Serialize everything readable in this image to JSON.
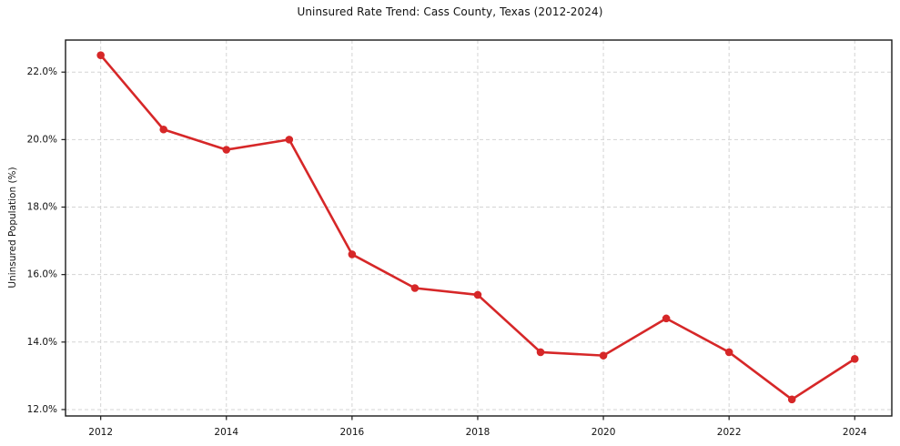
{
  "chart_data": {
    "type": "line",
    "title": "Uninsured Rate Trend: Cass County, Texas (2012-2024)",
    "xlabel": "",
    "ylabel": "Uninsured Population (%)",
    "x": [
      2012,
      2013,
      2014,
      2015,
      2016,
      2017,
      2018,
      2019,
      2020,
      2021,
      2022,
      2023,
      2024
    ],
    "values": [
      22.5,
      20.3,
      19.7,
      20.0,
      16.6,
      15.6,
      15.4,
      13.7,
      13.6,
      14.7,
      13.7,
      12.3,
      13.5
    ],
    "x_tick_values": [
      2012,
      2014,
      2016,
      2018,
      2020,
      2022,
      2024
    ],
    "x_tick_labels": [
      "2012",
      "2014",
      "2016",
      "2018",
      "2020",
      "2022",
      "2024"
    ],
    "y_tick_values": [
      12,
      14,
      16,
      18,
      20,
      22
    ],
    "y_tick_labels": [
      "12.0%",
      "14.0%",
      "16.0%",
      "18.0%",
      "20.0%",
      "22.0%"
    ],
    "xlim": [
      2011.44,
      2024.59
    ],
    "ylim": [
      11.81,
      22.95
    ],
    "grid": true,
    "grid_style": "dashed",
    "legend_position": "none",
    "colors": {
      "line": "#d62728",
      "marker": "#d62728",
      "grid": "#d4d4d4",
      "spine": "#1a1a1a",
      "tick": "#1a1a1a",
      "text": "#111111",
      "background": "#ffffff"
    }
  }
}
